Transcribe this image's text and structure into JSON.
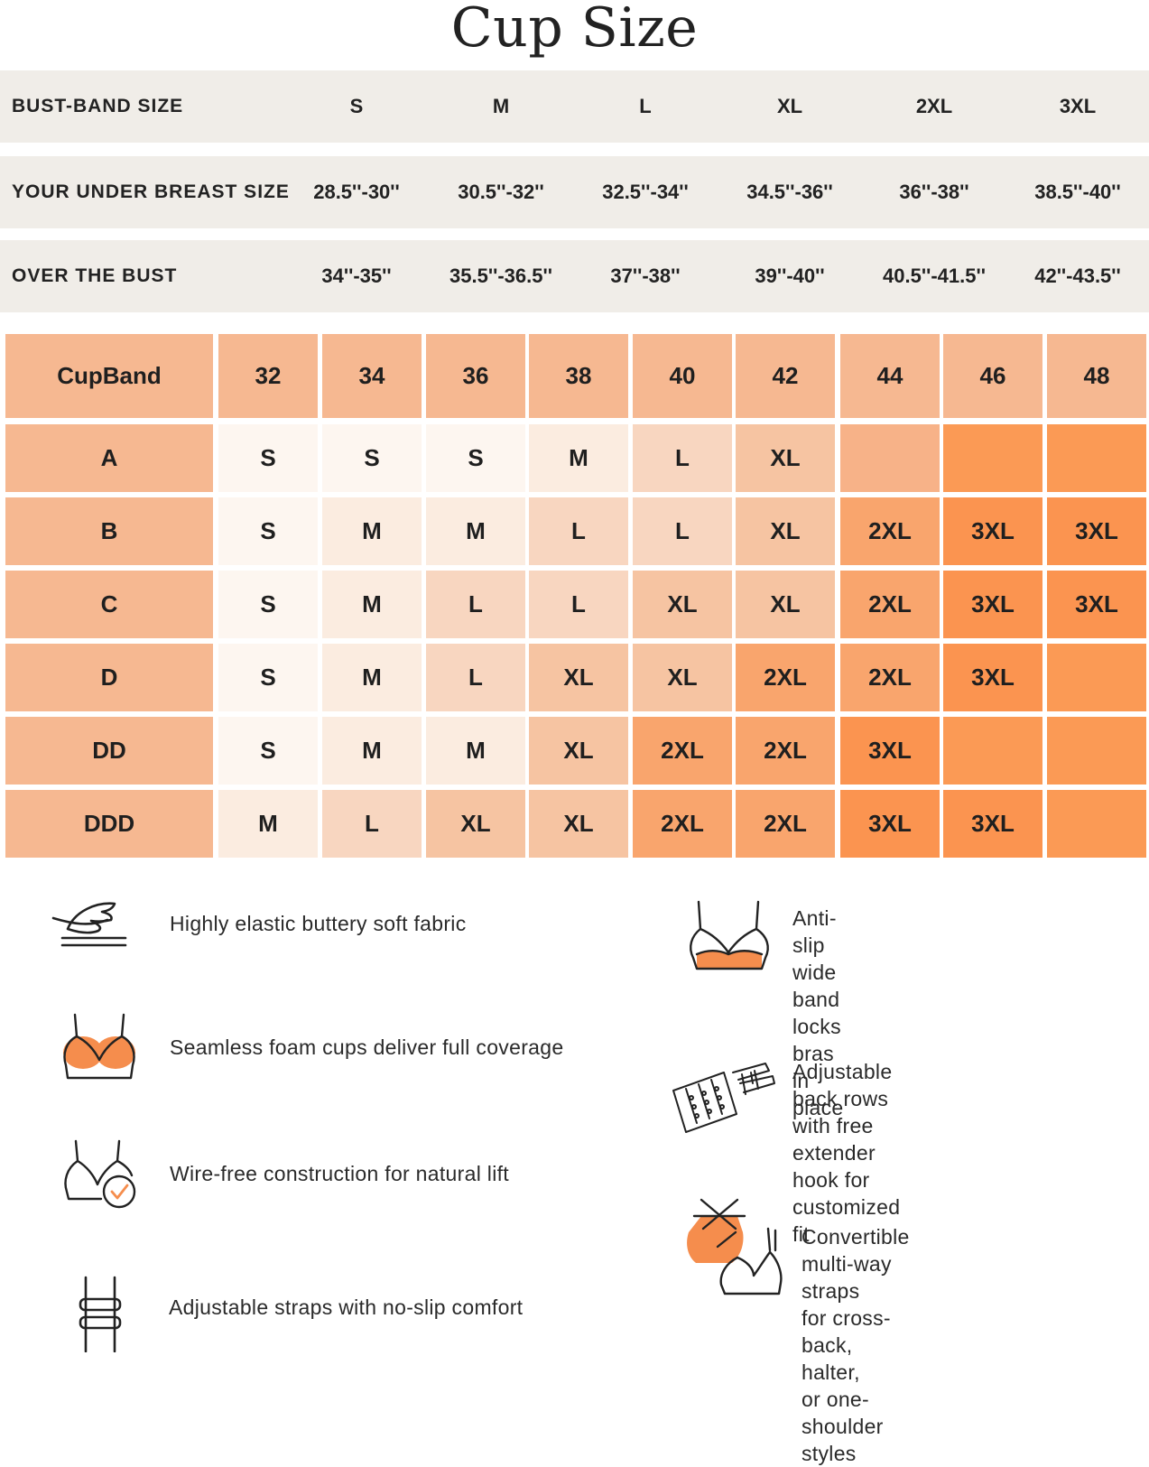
{
  "title": "Cup Size",
  "size_rows": [
    {
      "label": "BUST-BAND SIZE",
      "values": [
        "S",
        "M",
        "L",
        "XL",
        "2XL",
        "3XL"
      ]
    },
    {
      "label": "YOUR UNDER BREAST SIZE",
      "values": [
        "28.5''-30''",
        "30.5''-32''",
        "32.5''-34''",
        "34.5''-36''",
        "36''-38''",
        "38.5''-40''"
      ]
    },
    {
      "label": "OVER THE BUST",
      "values": [
        "34''-35''",
        "35.5''-36.5''",
        "37''-38''",
        "39''-40''",
        "40.5''-41.5''",
        "42''-43.5''"
      ]
    }
  ],
  "cup_table": {
    "corner": "CupBand",
    "bands": [
      "32",
      "34",
      "36",
      "38",
      "40",
      "42",
      "44",
      "46",
      "48"
    ],
    "rows": [
      {
        "cup": "A",
        "sizes": [
          "S",
          "S",
          "S",
          "M",
          "L",
          "XL",
          "",
          "",
          ""
        ]
      },
      {
        "cup": "B",
        "sizes": [
          "S",
          "M",
          "M",
          "L",
          "L",
          "XL",
          "2XL",
          "3XL",
          "3XL"
        ]
      },
      {
        "cup": "C",
        "sizes": [
          "S",
          "M",
          "L",
          "L",
          "XL",
          "XL",
          "2XL",
          "3XL",
          "3XL"
        ]
      },
      {
        "cup": "D",
        "sizes": [
          "S",
          "M",
          "L",
          "XL",
          "XL",
          "2XL",
          "2XL",
          "3XL",
          ""
        ]
      },
      {
        "cup": "DD",
        "sizes": [
          "S",
          "M",
          "M",
          "XL",
          "2XL",
          "2XL",
          "3XL",
          "",
          ""
        ]
      },
      {
        "cup": "DDD",
        "sizes": [
          "M",
          "L",
          "XL",
          "XL",
          "2XL",
          "2XL",
          "3XL",
          "3XL",
          ""
        ]
      }
    ],
    "size_colors": {
      "S": "#fdf6f0",
      "M": "#fbece0",
      "L": "#f8d6c0",
      "XL": "#f6c4a2",
      "2XL": "#f9a56d",
      "3XL": "#fb9450",
      "empty_44": "#f7b288",
      "empty_46_48": "#fb9a55"
    },
    "header_color": "#f6b891",
    "cup_label_color": "#f6b891"
  },
  "features": [
    {
      "icon": "feather-icon",
      "text": "Highly elastic buttery soft fabric"
    },
    {
      "icon": "wide-band-bra-icon",
      "text": "Anti-slip wide band locks bras\nin place"
    },
    {
      "icon": "foam-cups-bra-icon",
      "text": "Seamless foam cups deliver full coverage"
    },
    {
      "icon": "back-hooks-icon",
      "text": "Adjustable back rows with free\nextender hook for customized fit"
    },
    {
      "icon": "wire-free-bra-icon",
      "text": "Wire-free construction for natural lift"
    },
    {
      "icon": "convertible-straps-icon",
      "text": "Convertible multi-way straps\nfor cross-back, halter,\nor one-shoulder styles"
    },
    {
      "icon": "adjustable-strap-icon",
      "text": "Adjustable straps with no-slip comfort"
    }
  ],
  "accent_color": "#f58d4d"
}
